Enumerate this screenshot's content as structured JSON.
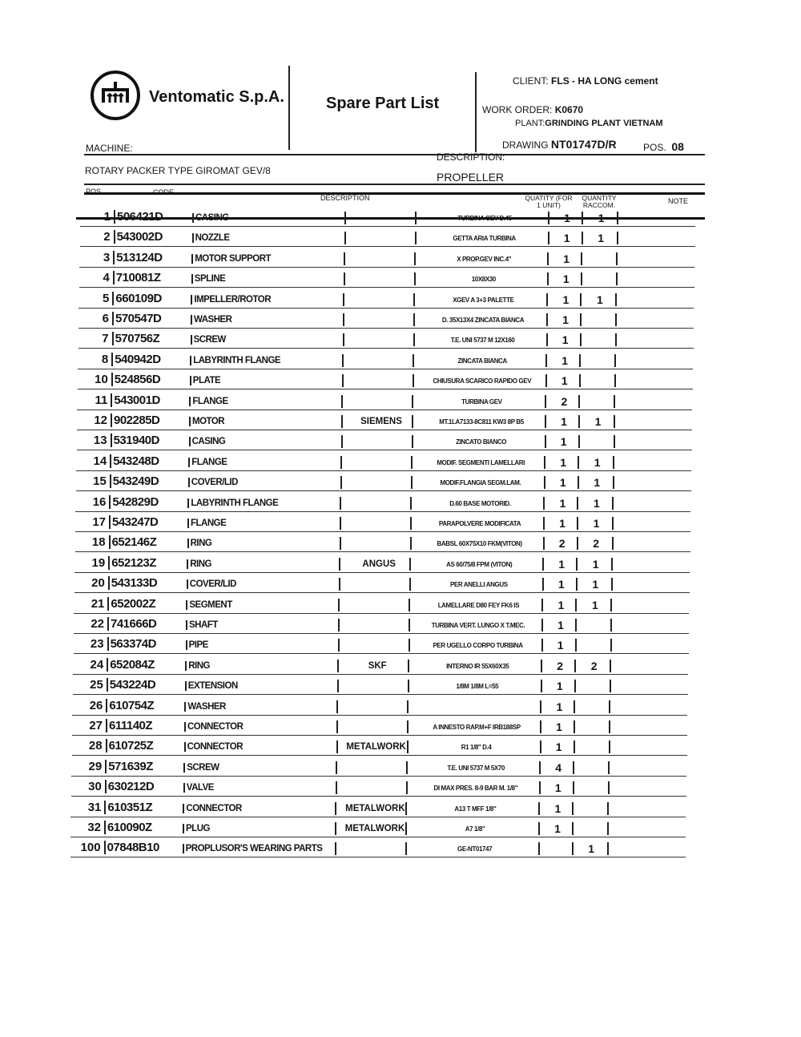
{
  "company": "Ventomatic S.p.A.",
  "doc_title": "Spare Part List",
  "client_label": "CLIENT:",
  "client": "FLS - HA LONG cement",
  "work_order_label": "WORK ORDER:",
  "work_order": "K0670",
  "plant_label": "PLANT:",
  "plant": "GRINDING PLANT VIETNAM",
  "drawing_label": "DRAWING",
  "drawing": "NT01747D/R",
  "pos_label": "POS.",
  "pos": "08",
  "machine_label": "MACHINE:",
  "machine": "ROTARY PACKER TYPE GIROMAT GEV/8",
  "description_label": "DESCRIPTION:",
  "description": "PROPELLER",
  "columns": {
    "pos": "POS.",
    "code": "CODE",
    "description": "DESCRIPTION",
    "qty": "QUATITY (FOR 1 UNIT)",
    "raccom": "QUANTITY RACCOM.",
    "note": "NOTE"
  },
  "rows": [
    {
      "pos": "1",
      "code": "506421D",
      "desc": "CASING",
      "mfr": "",
      "note": "TURBINA GEV D.45",
      "qty": "1",
      "raccom": "1"
    },
    {
      "pos": "2",
      "code": "543002D",
      "desc": "NOZZLE",
      "mfr": "",
      "note": "GETTA ARIA TURBINA",
      "qty": "1",
      "raccom": "1"
    },
    {
      "pos": "3",
      "code": "513124D",
      "desc": "MOTOR SUPPORT",
      "mfr": "",
      "note": "X PROP.GEV INC.4\"",
      "qty": "1",
      "raccom": ""
    },
    {
      "pos": "4",
      "code": "710081Z",
      "desc": "SPLINE",
      "mfr": "",
      "note": "10X8X30",
      "qty": "1",
      "raccom": ""
    },
    {
      "pos": "5",
      "code": "660109D",
      "desc": "IMPELLER/ROTOR",
      "mfr": "",
      "note": "XGEV A 3+3 PALETTE",
      "qty": "1",
      "raccom": "1"
    },
    {
      "pos": "6",
      "code": "570547D",
      "desc": "WASHER",
      "mfr": "",
      "note": "D. 35X13X4 ZINCATA BIANCA",
      "qty": "1",
      "raccom": ""
    },
    {
      "pos": "7",
      "code": "570756Z",
      "desc": "SCREW",
      "mfr": "",
      "note": "T.E. UNI 5737 M 12X160",
      "qty": "1",
      "raccom": ""
    },
    {
      "pos": "8",
      "code": "540942D",
      "desc": "LABYRINTH FLANGE",
      "mfr": "",
      "note": "ZINCATA BIANCA",
      "qty": "1",
      "raccom": ""
    },
    {
      "pos": "10",
      "code": "524856D",
      "desc": "PLATE",
      "mfr": "",
      "note": "CHIUSURA SCARICO RAPIDO GEV",
      "qty": "1",
      "raccom": ""
    },
    {
      "pos": "11",
      "code": "543001D",
      "desc": "FLANGE",
      "mfr": "",
      "note": "TURBINA GEV",
      "qty": "2",
      "raccom": ""
    },
    {
      "pos": "12",
      "code": "902285D",
      "desc": "MOTOR",
      "mfr": "SIEMENS",
      "note": "MT.1LA7133-8C811 KW3 8P B5",
      "qty": "1",
      "raccom": "1"
    },
    {
      "pos": "13",
      "code": "531940D",
      "desc": "CASING",
      "mfr": "",
      "note": "ZINCATO BIANCO",
      "qty": "1",
      "raccom": ""
    },
    {
      "pos": "14",
      "code": "543248D",
      "desc": "FLANGE",
      "mfr": "",
      "note": "MODIF. SEGMENTI LAMELLARI",
      "qty": "1",
      "raccom": "1"
    },
    {
      "pos": "15",
      "code": "543249D",
      "desc": "COVER/LID",
      "mfr": "",
      "note": "MODIF.FLANGIA SEGM.LAM.",
      "qty": "1",
      "raccom": "1"
    },
    {
      "pos": "16",
      "code": "542829D",
      "desc": "LABYRINTH FLANGE",
      "mfr": "",
      "note": "D.60 BASE MOTORID.",
      "qty": "1",
      "raccom": "1"
    },
    {
      "pos": "17",
      "code": "543247D",
      "desc": "FLANGE",
      "mfr": "",
      "note": "PARAPOLVERE MODIFICATA",
      "qty": "1",
      "raccom": "1"
    },
    {
      "pos": "18",
      "code": "652146Z",
      "desc": "RING",
      "mfr": "",
      "note": "BABSL 60X75X10 FKM(VITON)",
      "qty": "2",
      "raccom": "2"
    },
    {
      "pos": "19",
      "code": "652123Z",
      "desc": "RING",
      "mfr": "ANGUS",
      "note": "AS 60/75/8 FPM (VITON)",
      "qty": "1",
      "raccom": "1"
    },
    {
      "pos": "20",
      "code": "543133D",
      "desc": "COVER/LID",
      "mfr": "",
      "note": "PER ANELLI ANGUS",
      "qty": "1",
      "raccom": "1"
    },
    {
      "pos": "21",
      "code": "652002Z",
      "desc": "SEGMENT",
      "mfr": "",
      "note": "LAMELLARE D80 FEY FK6 IS",
      "qty": "1",
      "raccom": "1"
    },
    {
      "pos": "22",
      "code": "741666D",
      "desc": "SHAFT",
      "mfr": "",
      "note": "TURBINA VERT. LUNGO X T.MEC.",
      "qty": "1",
      "raccom": ""
    },
    {
      "pos": "23",
      "code": "563374D",
      "desc": "PIPE",
      "mfr": "",
      "note": "PER UGELLO CORPO TURBINA",
      "qty": "1",
      "raccom": ""
    },
    {
      "pos": "24",
      "code": "652084Z",
      "desc": "RING",
      "mfr": "SKF",
      "note": "INTERNO IR 55X60X35",
      "qty": "2",
      "raccom": "2"
    },
    {
      "pos": "25",
      "code": "543224D",
      "desc": "EXTENSION",
      "mfr": "",
      "note": "1/8M 1/8M L=55",
      "qty": "1",
      "raccom": ""
    },
    {
      "pos": "26",
      "code": "610754Z",
      "desc": "WASHER",
      "mfr": "",
      "note": "",
      "qty": "1",
      "raccom": ""
    },
    {
      "pos": "27",
      "code": "611140Z",
      "desc": "CONNECTOR",
      "mfr": "",
      "note": "A INNESTO RAP.M+F IRB188SP",
      "qty": "1",
      "raccom": ""
    },
    {
      "pos": "28",
      "code": "610725Z",
      "desc": "CONNECTOR",
      "mfr": "METALWORK",
      "note": "R1 1/8\" D.4",
      "qty": "1",
      "raccom": ""
    },
    {
      "pos": "29",
      "code": "571639Z",
      "desc": "SCREW",
      "mfr": "",
      "note": "T.E. UNI 5737 M 5X70",
      "qty": "4",
      "raccom": ""
    },
    {
      "pos": "30",
      "code": "630212D",
      "desc": "VALVE",
      "mfr": "",
      "note": "DI MAX PRES. 8-9 BAR M. 1/8\"",
      "qty": "1",
      "raccom": ""
    },
    {
      "pos": "31",
      "code": "610351Z",
      "desc": "CONNECTOR",
      "mfr": "METALWORK",
      "note": "A13 T MFF 1/8\"",
      "qty": "1",
      "raccom": ""
    },
    {
      "pos": "32",
      "code": "610090Z",
      "desc": "PLUG",
      "mfr": "METALWORK",
      "note": "A7 1/8\"",
      "qty": "1",
      "raccom": ""
    },
    {
      "pos": "100",
      "code": "07848B10",
      "desc": "PROPLUSOR'S WEARING PARTS",
      "mfr": "",
      "note": "GE-NT01747",
      "qty": "",
      "raccom": "1"
    }
  ]
}
